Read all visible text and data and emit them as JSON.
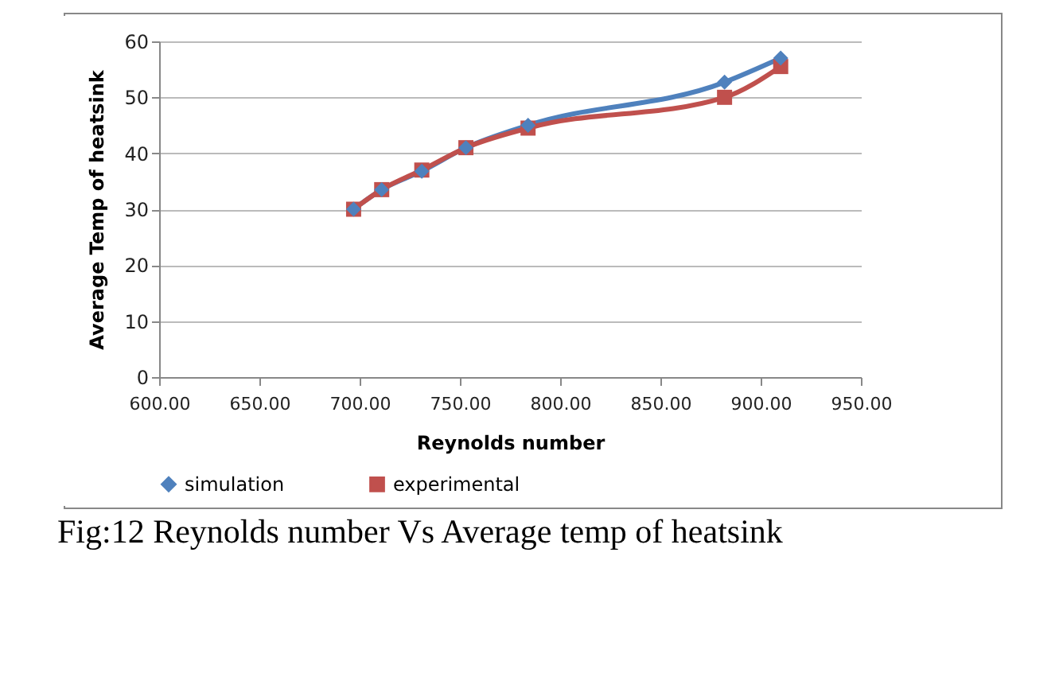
{
  "chart_data": {
    "type": "line",
    "xlabel": "Reynolds number",
    "ylabel": "Average Temp of heatsink",
    "annotations": [
      "Fig:12 Reynolds number Vs Average temp of heatsink"
    ],
    "x": [
      697,
      711,
      731,
      753,
      784,
      882,
      910
    ],
    "series": [
      {
        "name": "simulation",
        "color": "#4f81bd",
        "marker": "diamond",
        "values": [
          30,
          33.5,
          36.8,
          41,
          45,
          52.7,
          57
        ]
      },
      {
        "name": "experimental",
        "color": "#c0504d",
        "marker": "square",
        "values": [
          30,
          33.5,
          37,
          41,
          44.5,
          50,
          55.5
        ]
      }
    ],
    "xlim": [
      600,
      950
    ],
    "xticks": [
      {
        "value": 600,
        "label": "600.00"
      },
      {
        "value": 650,
        "label": "650.00"
      },
      {
        "value": 700,
        "label": "700.00"
      },
      {
        "value": 750,
        "label": "750.00"
      },
      {
        "value": 800,
        "label": "800.00"
      },
      {
        "value": 850,
        "label": "850.00"
      },
      {
        "value": 900,
        "label": "900.00"
      },
      {
        "value": 950,
        "label": "950.00"
      }
    ],
    "ylim": [
      0,
      60
    ],
    "yticks": [
      0,
      10,
      20,
      30,
      40,
      50,
      60
    ],
    "grid": "y",
    "legend": "bottom"
  }
}
